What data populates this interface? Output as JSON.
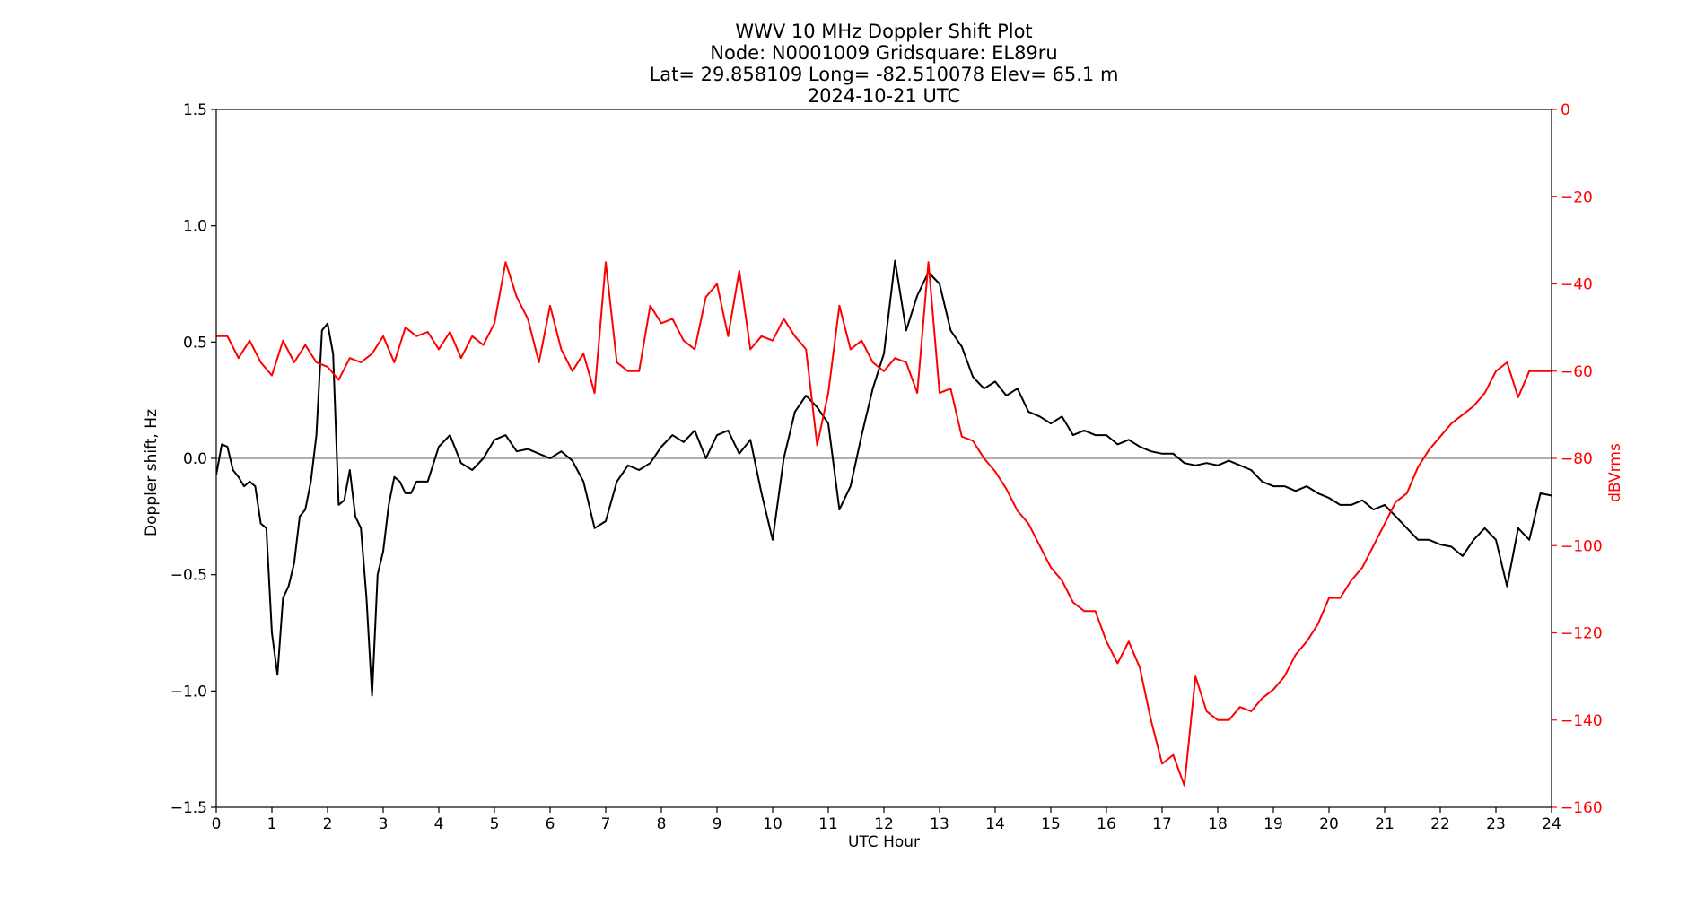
{
  "chart_data": {
    "type": "line",
    "title_lines": [
      "WWV 10 MHz Doppler Shift Plot",
      "Node:  N0001009     Gridsquare:  EL89ru",
      "Lat= 29.858109    Long= -82.510078    Elev= 65.1 m",
      "2024-10-21  UTC"
    ],
    "xlabel": "UTC Hour",
    "ylabel_left": "Doppler shift, Hz",
    "ylabel_right": "dBVrms",
    "xlim": [
      0,
      24
    ],
    "ylim_left": [
      -1.5,
      1.5
    ],
    "ylim_right": [
      -160,
      0
    ],
    "x_ticks": [
      0,
      1,
      2,
      3,
      4,
      5,
      6,
      7,
      8,
      9,
      10,
      11,
      12,
      13,
      14,
      15,
      16,
      17,
      18,
      19,
      20,
      21,
      22,
      23,
      24
    ],
    "y_ticks_left": [
      "1.5",
      "1.0",
      "0.5",
      "0.0",
      "−0.5",
      "−1.0",
      "−1.5"
    ],
    "y_ticks_left_values": [
      1.5,
      1.0,
      0.5,
      0.0,
      -0.5,
      -1.0,
      -1.5
    ],
    "y_ticks_right": [
      0,
      -20,
      -40,
      -60,
      -80,
      -100,
      -120,
      -140,
      -160
    ],
    "zero_line": 0,
    "colors": {
      "doppler": "#000000",
      "power": "#ff0000",
      "zero_line": "#808080",
      "right_axis": "#ff0000"
    },
    "series": [
      {
        "axis": "left",
        "color": "#000000",
        "x": [
          0,
          0.1,
          0.2,
          0.3,
          0.4,
          0.5,
          0.6,
          0.7,
          0.8,
          0.9,
          1.0,
          1.1,
          1.2,
          1.3,
          1.4,
          1.5,
          1.6,
          1.7,
          1.8,
          1.9,
          2.0,
          2.1,
          2.2,
          2.3,
          2.4,
          2.5,
          2.6,
          2.7,
          2.8,
          2.9,
          3.0,
          3.1,
          3.2,
          3.3,
          3.4,
          3.5,
          3.6,
          3.8,
          4.0,
          4.2,
          4.4,
          4.6,
          4.8,
          5.0,
          5.2,
          5.4,
          5.6,
          5.8,
          6.0,
          6.2,
          6.4,
          6.6,
          6.8,
          7.0,
          7.2,
          7.4,
          7.6,
          7.8,
          8.0,
          8.2,
          8.4,
          8.6,
          8.8,
          9.0,
          9.2,
          9.4,
          9.6,
          9.8,
          10.0,
          10.2,
          10.4,
          10.6,
          10.8,
          11.0,
          11.2,
          11.4,
          11.6,
          11.8,
          12.0,
          12.2,
          12.4,
          12.6,
          12.8,
          13.0,
          13.2,
          13.4,
          13.6,
          13.8,
          14.0,
          14.2,
          14.4,
          14.6,
          14.8,
          15.0,
          15.2,
          15.4,
          15.6,
          15.8,
          16.0,
          16.2,
          16.4,
          16.6,
          16.8,
          17.0,
          17.2,
          17.4,
          17.6,
          17.8,
          18.0,
          18.2,
          18.4,
          18.6,
          18.8,
          19.0,
          19.2,
          19.4,
          19.6,
          19.8,
          20.0,
          20.2,
          20.4,
          20.6,
          20.8,
          21.0,
          21.2,
          21.4,
          21.6,
          21.8,
          22.0,
          22.2,
          22.4,
          22.6,
          22.8,
          23.0,
          23.2,
          23.4,
          23.6,
          23.8,
          24.0
        ],
        "y": [
          -0.07,
          0.06,
          0.05,
          -0.05,
          -0.08,
          -0.12,
          -0.1,
          -0.12,
          -0.28,
          -0.3,
          -0.75,
          -0.93,
          -0.6,
          -0.55,
          -0.45,
          -0.25,
          -0.22,
          -0.1,
          0.1,
          0.55,
          0.58,
          0.45,
          -0.2,
          -0.18,
          -0.05,
          -0.25,
          -0.3,
          -0.6,
          -1.02,
          -0.5,
          -0.4,
          -0.2,
          -0.08,
          -0.1,
          -0.15,
          -0.15,
          -0.1,
          -0.1,
          0.05,
          0.1,
          -0.02,
          -0.05,
          0.0,
          0.08,
          0.1,
          0.03,
          0.04,
          0.02,
          0.0,
          0.03,
          -0.01,
          -0.1,
          -0.3,
          -0.27,
          -0.1,
          -0.03,
          -0.05,
          -0.02,
          0.05,
          0.1,
          0.07,
          0.12,
          0.0,
          0.1,
          0.12,
          0.02,
          0.08,
          -0.15,
          -0.35,
          0.0,
          0.2,
          0.27,
          0.22,
          0.15,
          -0.22,
          -0.12,
          0.1,
          0.3,
          0.45,
          0.85,
          0.55,
          0.7,
          0.8,
          0.75,
          0.55,
          0.48,
          0.35,
          0.3,
          0.33,
          0.27,
          0.3,
          0.2,
          0.18,
          0.15,
          0.18,
          0.1,
          0.12,
          0.1,
          0.1,
          0.06,
          0.08,
          0.05,
          0.03,
          0.02,
          0.02,
          -0.02,
          -0.03,
          -0.02,
          -0.03,
          -0.01,
          -0.03,
          -0.05,
          -0.1,
          -0.12,
          -0.12,
          -0.14,
          -0.12,
          -0.15,
          -0.17,
          -0.2,
          -0.2,
          -0.18,
          -0.22,
          -0.2,
          -0.25,
          -0.3,
          -0.35,
          -0.35,
          -0.37,
          -0.38,
          -0.42,
          -0.35,
          -0.3,
          -0.35,
          -0.55,
          -0.3,
          -0.35,
          -0.15,
          -0.16
        ]
      },
      {
        "axis": "right",
        "color": "#ff0000",
        "x": [
          0,
          0.2,
          0.4,
          0.6,
          0.8,
          1.0,
          1.2,
          1.4,
          1.6,
          1.8,
          2.0,
          2.2,
          2.4,
          2.6,
          2.8,
          3.0,
          3.2,
          3.4,
          3.6,
          3.8,
          4.0,
          4.2,
          4.4,
          4.6,
          4.8,
          5.0,
          5.2,
          5.4,
          5.6,
          5.8,
          6.0,
          6.2,
          6.4,
          6.6,
          6.8,
          7.0,
          7.2,
          7.4,
          7.6,
          7.8,
          8.0,
          8.2,
          8.4,
          8.6,
          8.8,
          9.0,
          9.2,
          9.4,
          9.6,
          9.8,
          10.0,
          10.2,
          10.4,
          10.6,
          10.8,
          11.0,
          11.2,
          11.4,
          11.6,
          11.8,
          12.0,
          12.2,
          12.4,
          12.6,
          12.8,
          13.0,
          13.2,
          13.4,
          13.6,
          13.8,
          14.0,
          14.2,
          14.4,
          14.6,
          14.8,
          15.0,
          15.2,
          15.4,
          15.6,
          15.8,
          16.0,
          16.2,
          16.4,
          16.6,
          16.8,
          17.0,
          17.2,
          17.4,
          17.6,
          17.8,
          18.0,
          18.2,
          18.4,
          18.6,
          18.8,
          19.0,
          19.2,
          19.4,
          19.6,
          19.8,
          20.0,
          20.2,
          20.4,
          20.6,
          20.8,
          21.0,
          21.2,
          21.4,
          21.6,
          21.8,
          22.0,
          22.2,
          22.4,
          22.6,
          22.8,
          23.0,
          23.2,
          23.4,
          23.6,
          23.8,
          24.0
        ],
        "y": [
          -52,
          -52,
          -57,
          -53,
          -58,
          -61,
          -53,
          -58,
          -54,
          -58,
          -59,
          -62,
          -57,
          -58,
          -56,
          -52,
          -58,
          -50,
          -52,
          -51,
          -55,
          -51,
          -57,
          -52,
          -54,
          -49,
          -35,
          -43,
          -48,
          -58,
          -45,
          -55,
          -60,
          -56,
          -65,
          -35,
          -58,
          -60,
          -60,
          -45,
          -49,
          -48,
          -53,
          -55,
          -43,
          -40,
          -52,
          -37,
          -55,
          -52,
          -53,
          -48,
          -52,
          -55,
          -77,
          -65,
          -45,
          -55,
          -53,
          -58,
          -60,
          -57,
          -58,
          -65,
          -35,
          -65,
          -64,
          -75,
          -76,
          -80,
          -83,
          -87,
          -92,
          -95,
          -100,
          -105,
          -108,
          -113,
          -115,
          -115,
          -122,
          -127,
          -122,
          -128,
          -140,
          -150,
          -148,
          -155,
          -130,
          -138,
          -140,
          -140,
          -137,
          -138,
          -135,
          -133,
          -130,
          -125,
          -122,
          -118,
          -112,
          -112,
          -108,
          -105,
          -100,
          -95,
          -90,
          -88,
          -82,
          -78,
          -75,
          -72,
          -70,
          -68,
          -65,
          -60,
          -58,
          -66,
          -60,
          -60,
          -60
        ]
      }
    ]
  }
}
